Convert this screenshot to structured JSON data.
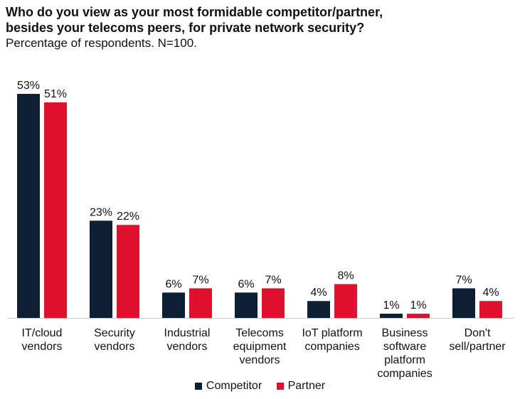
{
  "title_line1": "Who do you view as your most formidable competitor/partner,",
  "title_line2": "besides your telecoms peers, for private network security?",
  "subtitle": "Percentage of respondents. N=100.",
  "colors": {
    "competitor": "#0f1f33",
    "partner": "#e0102f"
  },
  "chart_data": {
    "type": "bar",
    "title": "Who do you view as your most formidable competitor/partner, besides your telecoms peers, for private network security?",
    "subtitle": "Percentage of respondents. N=100.",
    "categories": [
      [
        "IT/cloud",
        "vendors"
      ],
      [
        "Security",
        "vendors"
      ],
      [
        "Industrial",
        "vendors"
      ],
      [
        "Telecoms",
        "equipment",
        "vendors"
      ],
      [
        "IoT platform",
        "companies"
      ],
      [
        "Business",
        "software",
        "platform",
        "companies"
      ],
      [
        "Don't",
        "sell/partner"
      ]
    ],
    "series": [
      {
        "name": "Competitor",
        "values": [
          53,
          23,
          6,
          6,
          4,
          1,
          7
        ]
      },
      {
        "name": "Partner",
        "values": [
          51,
          22,
          7,
          7,
          8,
          1,
          4
        ]
      }
    ],
    "value_suffix": "%",
    "ylim": [
      0,
      53
    ],
    "grid": false,
    "legend_position": "bottom"
  }
}
